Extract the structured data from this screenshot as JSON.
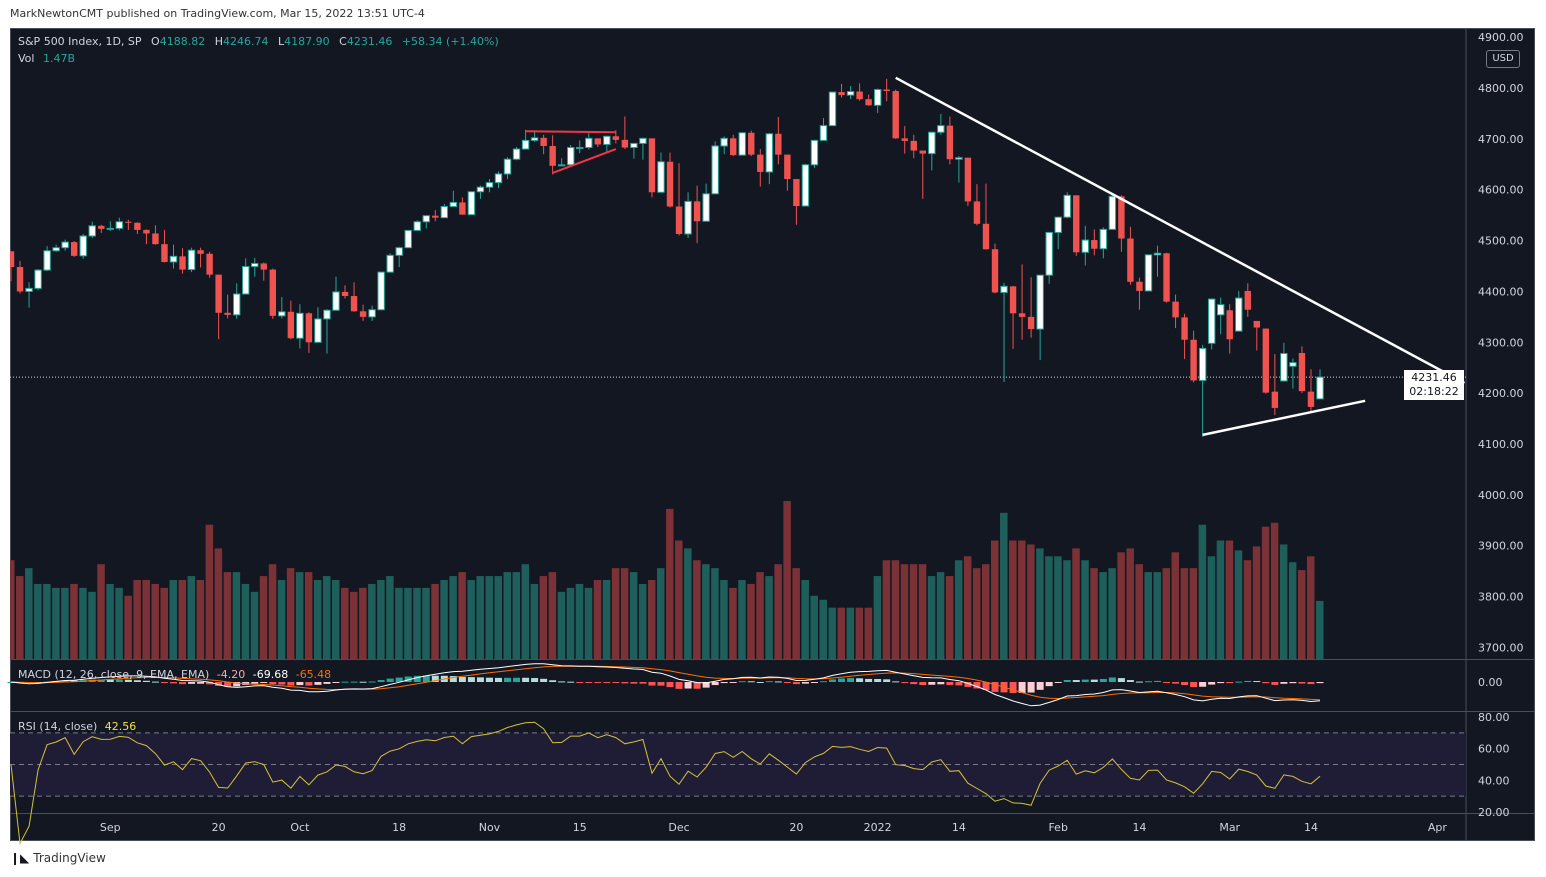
{
  "header": {
    "publisher_line": "MarkNewtonCMT published on TradingView.com, Mar 15, 2022 13:51 UTC-4"
  },
  "legend": {
    "symbol": "S&P 500 Index, 1D, SP",
    "open_label": "O",
    "open": "4188.82",
    "high_label": "H",
    "high": "4246.74",
    "low_label": "L",
    "low": "4187.90",
    "close_label": "C",
    "close": "4231.46",
    "change": "+58.34 (+1.40%)",
    "vol_label": "Vol",
    "vol": "1.47B"
  },
  "currency_button": "USD",
  "last_price": {
    "price": "4231.46",
    "countdown": "02:18:22"
  },
  "macd_legend": {
    "title": "MACD (12, 26, close, 9, EMA, EMA)",
    "hist": "-4.20",
    "macd": "-69.68",
    "signal": "-65.48"
  },
  "rsi_legend": {
    "title": "RSI (14, close)",
    "value": "42.56"
  },
  "footer": {
    "brand": "TradingView",
    "logo_mark": "17"
  },
  "colors": {
    "background": "#131722",
    "up_border": "#26a69a",
    "up_body": "#ffffff",
    "down": "#ef5350",
    "vol_up": "#1e5f5c",
    "vol_down": "#7b3237",
    "macd_line": "#ffffff",
    "signal_line": "#ff6d00",
    "rsi_line": "#d4c13a",
    "trendline": "#ffffff",
    "pattern_line": "#f23645"
  },
  "chart_data": {
    "type": "candlestick",
    "symbol": "S&P 500 Index",
    "interval": "1D",
    "price_axis": {
      "labels": [
        "4900.00",
        "4800.00",
        "4700.00",
        "4600.00",
        "4500.00",
        "4400.00",
        "4300.00",
        "4200.00",
        "4100.00",
        "4000.00",
        "3900.00",
        "3800.00",
        "3700.00"
      ],
      "range": [
        3690,
        4900
      ]
    },
    "macd_axis": {
      "labels": [
        "0.00"
      ]
    },
    "rsi_axis": {
      "labels": [
        "80.00",
        "60.00",
        "40.00",
        "20.00"
      ],
      "band": [
        30,
        70
      ],
      "levels": [
        70,
        50,
        30
      ]
    },
    "time_axis": [
      {
        "label": "Sep",
        "date": "2021-09-01"
      },
      {
        "label": "20",
        "date": "2021-09-20"
      },
      {
        "label": "Oct",
        "date": "2021-10-01"
      },
      {
        "label": "18",
        "date": "2021-10-18"
      },
      {
        "label": "Nov",
        "date": "2021-11-01"
      },
      {
        "label": "15",
        "date": "2021-11-15"
      },
      {
        "label": "Dec",
        "date": "2021-12-01"
      },
      {
        "label": "20",
        "date": "2021-12-20"
      },
      {
        "label": "2022",
        "date": "2022-01-03"
      },
      {
        "label": "14",
        "date": "2022-01-14"
      },
      {
        "label": "Feb",
        "date": "2022-02-01"
      },
      {
        "label": "14",
        "date": "2022-02-14"
      },
      {
        "label": "Mar",
        "date": "2022-03-01"
      },
      {
        "label": "14",
        "date": "2022-03-14"
      },
      {
        "label": "Apr",
        "date": "2022-04-01"
      }
    ],
    "bars_columns": [
      "date",
      "open",
      "high",
      "low",
      "close",
      "volume_billions"
    ],
    "bars": [
      [
        "2021-08-17",
        4479,
        4479,
        4420,
        4448,
        2.5
      ],
      [
        "2021-08-18",
        4448,
        4460,
        4396,
        4400,
        2.1
      ],
      [
        "2021-08-19",
        4400,
        4418,
        4368,
        4406,
        2.3
      ],
      [
        "2021-08-20",
        4406,
        4444,
        4402,
        4442,
        1.9
      ],
      [
        "2021-08-23",
        4442,
        4489,
        4440,
        4480,
        1.9
      ],
      [
        "2021-08-24",
        4480,
        4492,
        4478,
        4486,
        1.8
      ],
      [
        "2021-08-25",
        4486,
        4502,
        4480,
        4497,
        1.8
      ],
      [
        "2021-08-26",
        4497,
        4499,
        4468,
        4470,
        1.9
      ],
      [
        "2021-08-27",
        4470,
        4513,
        4464,
        4509,
        1.8
      ],
      [
        "2021-08-30",
        4509,
        4537,
        4505,
        4529,
        1.7
      ],
      [
        "2021-08-31",
        4529,
        4531,
        4515,
        4523,
        2.4
      ],
      [
        "2021-09-01",
        4523,
        4538,
        4519,
        4524,
        1.9
      ],
      [
        "2021-09-02",
        4524,
        4545,
        4520,
        4537,
        1.8
      ],
      [
        "2021-09-03",
        4537,
        4541,
        4521,
        4535,
        1.6
      ],
      [
        "2021-09-07",
        4535,
        4536,
        4513,
        4521,
        2.0
      ],
      [
        "2021-09-08",
        4521,
        4522,
        4493,
        4514,
        2.0
      ],
      [
        "2021-09-09",
        4514,
        4530,
        4492,
        4493,
        1.9
      ],
      [
        "2021-09-10",
        4493,
        4521,
        4457,
        4458,
        1.8
      ],
      [
        "2021-09-13",
        4458,
        4492,
        4445,
        4469,
        2.0
      ],
      [
        "2021-09-14",
        4469,
        4485,
        4435,
        4443,
        2.0
      ],
      [
        "2021-09-15",
        4443,
        4486,
        4438,
        4481,
        2.1
      ],
      [
        "2021-09-16",
        4481,
        4486,
        4447,
        4474,
        2.0
      ],
      [
        "2021-09-17",
        4474,
        4478,
        4427,
        4433,
        3.4
      ],
      [
        "2021-09-20",
        4433,
        4433,
        4306,
        4358,
        2.8
      ],
      [
        "2021-09-21",
        4358,
        4394,
        4347,
        4354,
        2.2
      ],
      [
        "2021-09-22",
        4354,
        4416,
        4346,
        4395,
        2.2
      ],
      [
        "2021-09-23",
        4395,
        4465,
        4395,
        4449,
        1.9
      ],
      [
        "2021-09-24",
        4449,
        4466,
        4429,
        4455,
        1.7
      ],
      [
        "2021-09-27",
        4455,
        4457,
        4421,
        4443,
        2.1
      ],
      [
        "2021-09-28",
        4443,
        4445,
        4346,
        4352,
        2.4
      ],
      [
        "2021-09-29",
        4352,
        4389,
        4347,
        4360,
        2.0
      ],
      [
        "2021-09-30",
        4360,
        4382,
        4306,
        4308,
        2.3
      ],
      [
        "2021-10-01",
        4308,
        4375,
        4288,
        4357,
        2.2
      ],
      [
        "2021-10-04",
        4357,
        4359,
        4279,
        4300,
        2.2
      ],
      [
        "2021-10-05",
        4300,
        4369,
        4300,
        4346,
        2.0
      ],
      [
        "2021-10-06",
        4346,
        4365,
        4278,
        4363,
        2.1
      ],
      [
        "2021-10-07",
        4363,
        4429,
        4363,
        4399,
        2.0
      ],
      [
        "2021-10-08",
        4399,
        4412,
        4386,
        4391,
        1.8
      ],
      [
        "2021-10-11",
        4391,
        4418,
        4360,
        4361,
        1.7
      ],
      [
        "2021-10-12",
        4361,
        4374,
        4342,
        4350,
        1.8
      ],
      [
        "2021-10-13",
        4350,
        4372,
        4342,
        4364,
        1.9
      ],
      [
        "2021-10-14",
        4364,
        4439,
        4364,
        4438,
        2.0
      ],
      [
        "2021-10-15",
        4438,
        4475,
        4438,
        4471,
        2.1
      ],
      [
        "2021-10-18",
        4471,
        4488,
        4448,
        4486,
        1.8
      ],
      [
        "2021-10-19",
        4486,
        4520,
        4486,
        4520,
        1.8
      ],
      [
        "2021-10-20",
        4520,
        4540,
        4520,
        4537,
        1.8
      ],
      [
        "2021-10-21",
        4537,
        4550,
        4524,
        4549,
        1.8
      ],
      [
        "2021-10-22",
        4549,
        4560,
        4538,
        4545,
        1.9
      ],
      [
        "2021-10-25",
        4545,
        4572,
        4545,
        4567,
        2.0
      ],
      [
        "2021-10-26",
        4567,
        4598,
        4567,
        4575,
        2.1
      ],
      [
        "2021-10-27",
        4575,
        4585,
        4551,
        4551,
        2.2
      ],
      [
        "2021-10-28",
        4551,
        4597,
        4551,
        4596,
        2.0
      ],
      [
        "2021-10-29",
        4596,
        4608,
        4582,
        4605,
        2.1
      ],
      [
        "2021-11-01",
        4605,
        4621,
        4595,
        4614,
        2.1
      ],
      [
        "2021-11-02",
        4614,
        4636,
        4603,
        4631,
        2.1
      ],
      [
        "2021-11-03",
        4631,
        4664,
        4621,
        4660,
        2.2
      ],
      [
        "2021-11-04",
        4660,
        4684,
        4658,
        4680,
        2.2
      ],
      [
        "2021-11-05",
        4680,
        4718,
        4680,
        4697,
        2.4
      ],
      [
        "2021-11-08",
        4697,
        4714,
        4694,
        4702,
        1.9
      ],
      [
        "2021-11-09",
        4702,
        4708,
        4670,
        4686,
        2.1
      ],
      [
        "2021-11-10",
        4686,
        4707,
        4630,
        4647,
        2.2
      ],
      [
        "2021-11-11",
        4647,
        4662,
        4646,
        4649,
        1.7
      ],
      [
        "2021-11-12",
        4649,
        4688,
        4646,
        4683,
        1.8
      ],
      [
        "2021-11-15",
        4683,
        4697,
        4672,
        4683,
        1.9
      ],
      [
        "2021-11-16",
        4683,
        4714,
        4679,
        4701,
        1.8
      ],
      [
        "2021-11-17",
        4701,
        4701,
        4684,
        4689,
        2.0
      ],
      [
        "2021-11-18",
        4689,
        4706,
        4671,
        4705,
        2.0
      ],
      [
        "2021-11-19",
        4705,
        4717,
        4691,
        4698,
        2.3
      ],
      [
        "2021-11-22",
        4698,
        4744,
        4680,
        4683,
        2.3
      ],
      [
        "2021-11-23",
        4683,
        4692,
        4661,
        4691,
        2.2
      ],
      [
        "2021-11-24",
        4691,
        4702,
        4659,
        4701,
        1.9
      ],
      [
        "2021-11-26",
        4701,
        4701,
        4585,
        4595,
        2.0
      ],
      [
        "2021-11-29",
        4595,
        4673,
        4595,
        4655,
        2.3
      ],
      [
        "2021-11-30",
        4655,
        4673,
        4565,
        4567,
        3.8
      ],
      [
        "2021-12-01",
        4567,
        4652,
        4510,
        4513,
        3.0
      ],
      [
        "2021-12-02",
        4513,
        4595,
        4505,
        4577,
        2.8
      ],
      [
        "2021-12-03",
        4577,
        4608,
        4495,
        4538,
        2.5
      ],
      [
        "2021-12-06",
        4538,
        4612,
        4538,
        4592,
        2.4
      ],
      [
        "2021-12-07",
        4592,
        4695,
        4592,
        4686,
        2.3
      ],
      [
        "2021-12-08",
        4686,
        4705,
        4670,
        4701,
        2.0
      ],
      [
        "2021-12-09",
        4701,
        4708,
        4666,
        4668,
        1.8
      ],
      [
        "2021-12-10",
        4668,
        4713,
        4668,
        4712,
        2.0
      ],
      [
        "2021-12-13",
        4712,
        4716,
        4666,
        4669,
        1.9
      ],
      [
        "2021-12-14",
        4669,
        4680,
        4606,
        4635,
        2.2
      ],
      [
        "2021-12-15",
        4635,
        4712,
        4611,
        4710,
        2.1
      ],
      [
        "2021-12-16",
        4710,
        4743,
        4650,
        4669,
        2.4
      ],
      [
        "2021-12-17",
        4669,
        4669,
        4598,
        4621,
        4.0
      ],
      [
        "2021-12-20",
        4621,
        4621,
        4531,
        4568,
        2.3
      ],
      [
        "2021-12-21",
        4568,
        4651,
        4568,
        4649,
        2.0
      ],
      [
        "2021-12-22",
        4649,
        4698,
        4643,
        4697,
        1.6
      ],
      [
        "2021-12-23",
        4697,
        4741,
        4697,
        4726,
        1.5
      ],
      [
        "2021-12-27",
        4726,
        4792,
        4726,
        4792,
        1.3
      ],
      [
        "2021-12-28",
        4792,
        4808,
        4781,
        4786,
        1.3
      ],
      [
        "2021-12-29",
        4786,
        4804,
        4778,
        4793,
        1.3
      ],
      [
        "2021-12-30",
        4793,
        4809,
        4775,
        4778,
        1.3
      ],
      [
        "2021-12-31",
        4778,
        4787,
        4765,
        4766,
        1.3
      ],
      [
        "2022-01-03",
        4766,
        4799,
        4751,
        4797,
        2.1
      ],
      [
        "2022-01-04",
        4797,
        4818,
        4774,
        4794,
        2.5
      ],
      [
        "2022-01-05",
        4794,
        4797,
        4700,
        4701,
        2.5
      ],
      [
        "2022-01-06",
        4701,
        4725,
        4671,
        4696,
        2.4
      ],
      [
        "2022-01-07",
        4696,
        4708,
        4662,
        4677,
        2.4
      ],
      [
        "2022-01-10",
        4677,
        4677,
        4582,
        4671,
        2.4
      ],
      [
        "2022-01-11",
        4671,
        4714,
        4638,
        4713,
        2.1
      ],
      [
        "2022-01-12",
        4713,
        4749,
        4708,
        4726,
        2.2
      ],
      [
        "2022-01-13",
        4726,
        4744,
        4650,
        4660,
        2.1
      ],
      [
        "2022-01-14",
        4660,
        4666,
        4614,
        4663,
        2.5
      ],
      [
        "2022-01-18",
        4663,
        4663,
        4568,
        4577,
        2.6
      ],
      [
        "2022-01-19",
        4577,
        4611,
        4530,
        4533,
        2.3
      ],
      [
        "2022-01-20",
        4533,
        4612,
        4482,
        4483,
        2.4
      ],
      [
        "2022-01-21",
        4483,
        4494,
        4396,
        4398,
        3.0
      ],
      [
        "2022-01-24",
        4398,
        4417,
        4222,
        4410,
        3.7
      ],
      [
        "2022-01-25",
        4410,
        4411,
        4287,
        4357,
        3.0
      ],
      [
        "2022-01-26",
        4357,
        4453,
        4305,
        4350,
        3.0
      ],
      [
        "2022-01-27",
        4350,
        4428,
        4309,
        4326,
        2.9
      ],
      [
        "2022-01-28",
        4326,
        4432,
        4265,
        4432,
        2.8
      ],
      [
        "2022-01-31",
        4432,
        4516,
        4415,
        4516,
        2.6
      ],
      [
        "2022-02-01",
        4516,
        4546,
        4483,
        4546,
        2.6
      ],
      [
        "2022-02-02",
        4546,
        4595,
        4544,
        4589,
        2.5
      ],
      [
        "2022-02-03",
        4589,
        4589,
        4470,
        4477,
        2.8
      ],
      [
        "2022-02-04",
        4477,
        4529,
        4451,
        4501,
        2.5
      ],
      [
        "2022-02-07",
        4501,
        4522,
        4471,
        4484,
        2.3
      ],
      [
        "2022-02-08",
        4484,
        4526,
        4465,
        4522,
        2.2
      ],
      [
        "2022-02-09",
        4522,
        4591,
        4522,
        4587,
        2.3
      ],
      [
        "2022-02-10",
        4587,
        4589,
        4478,
        4504,
        2.7
      ],
      [
        "2022-02-11",
        4504,
        4527,
        4413,
        4419,
        2.8
      ],
      [
        "2022-02-14",
        4419,
        4427,
        4364,
        4401,
        2.4
      ],
      [
        "2022-02-15",
        4401,
        4472,
        4401,
        4472,
        2.2
      ],
      [
        "2022-02-16",
        4472,
        4490,
        4429,
        4475,
        2.2
      ],
      [
        "2022-02-17",
        4475,
        4476,
        4378,
        4380,
        2.3
      ],
      [
        "2022-02-18",
        4380,
        4394,
        4328,
        4349,
        2.7
      ],
      [
        "2022-02-22",
        4349,
        4356,
        4267,
        4305,
        2.3
      ],
      [
        "2022-02-23",
        4305,
        4323,
        4221,
        4225,
        2.3
      ],
      [
        "2022-02-24",
        4225,
        4295,
        4114,
        4288,
        3.4
      ],
      [
        "2022-02-25",
        4298,
        4385,
        4286,
        4385,
        2.6
      ],
      [
        "2022-02-28",
        4354,
        4388,
        4316,
        4374,
        3.0
      ],
      [
        "2022-03-01",
        4363,
        4375,
        4278,
        4306,
        3.0
      ],
      [
        "2022-03-02",
        4322,
        4401,
        4322,
        4387,
        2.75
      ],
      [
        "2022-03-03",
        4401,
        4416,
        4350,
        4364,
        2.5
      ],
      [
        "2022-03-04",
        4342,
        4342,
        4284,
        4329,
        2.85
      ],
      [
        "2022-03-07",
        4327,
        4327,
        4199,
        4201,
        3.35
      ],
      [
        "2022-03-08",
        4203,
        4277,
        4157,
        4171,
        3.45
      ],
      [
        "2022-03-09",
        4224,
        4299,
        4224,
        4278,
        2.9
      ],
      [
        "2022-03-10",
        4253,
        4268,
        4209,
        4260,
        2.45
      ],
      [
        "2022-03-11",
        4279,
        4292,
        4200,
        4204,
        2.25
      ],
      [
        "2022-03-14",
        4203,
        4247,
        4161,
        4173,
        2.6
      ],
      [
        "2022-03-15",
        4188.82,
        4246.74,
        4187.9,
        4231.46,
        1.47
      ]
    ],
    "drawings": [
      {
        "kind": "downtrend-line",
        "color": "#ffffff",
        "from": {
          "date": "2022-01-05",
          "price": 4820
        },
        "to": {
          "date": "2022-04-06",
          "price": 4220
        }
      },
      {
        "kind": "support-line",
        "color": "#ffffff",
        "from": {
          "date": "2022-02-24",
          "price": 4118
        },
        "to": {
          "date": "2022-03-22",
          "price": 4185
        }
      },
      {
        "kind": "pattern-upper",
        "color": "#f23645",
        "from": {
          "date": "2021-11-05",
          "price": 4715
        },
        "to": {
          "date": "2021-11-19",
          "price": 4713
        }
      },
      {
        "kind": "pattern-lower",
        "color": "#f23645",
        "from": {
          "date": "2021-11-10",
          "price": 4633
        },
        "to": {
          "date": "2021-11-19",
          "price": 4680
        }
      }
    ]
  }
}
